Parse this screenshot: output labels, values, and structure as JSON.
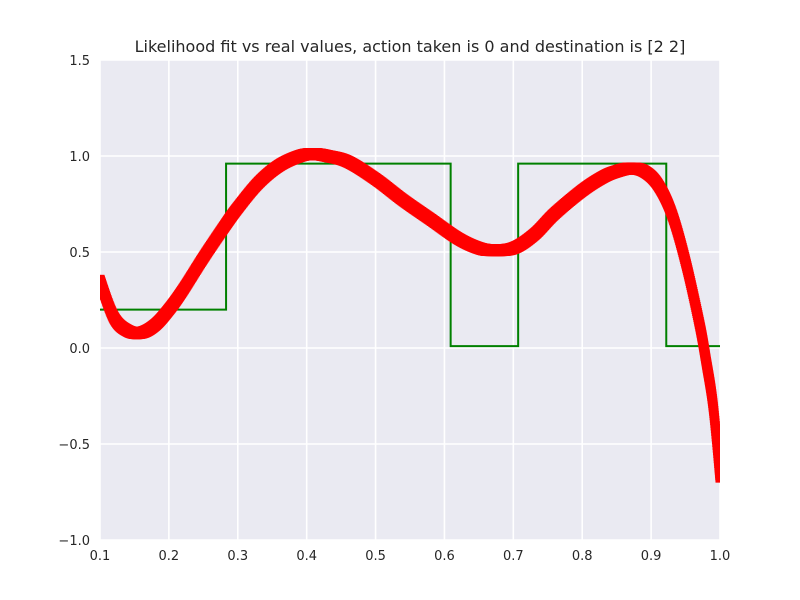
{
  "chart_data": {
    "type": "line",
    "title": "Likelihood fit vs real values, action taken is 0 and destination is [2 2]",
    "xlabel": "",
    "ylabel": "",
    "xlim": [
      0.1,
      1.0
    ],
    "ylim": [
      -1.0,
      1.5
    ],
    "x_ticks": [
      0.1,
      0.2,
      0.3,
      0.4,
      0.5,
      0.6,
      0.7,
      0.8,
      0.9,
      1.0
    ],
    "x_tick_labels": [
      "0.1",
      "0.2",
      "0.3",
      "0.4",
      "0.5",
      "0.6",
      "0.7",
      "0.8",
      "0.9",
      "1.0"
    ],
    "y_ticks": [
      -1.0,
      -0.5,
      0.0,
      0.5,
      1.0,
      1.5
    ],
    "y_tick_labels": [
      "−1.0",
      "−0.5",
      "0.0",
      "0.5",
      "1.0",
      "1.5"
    ],
    "grid": true,
    "background": "#eaeaf2",
    "series": [
      {
        "style": "step",
        "color": "#008000",
        "x": [
          0.1,
          0.283,
          0.283,
          0.609,
          0.609,
          0.707,
          0.707,
          0.922,
          0.922,
          1.0
        ],
        "y": [
          0.2,
          0.2,
          0.96,
          0.96,
          0.01,
          0.01,
          0.96,
          0.96,
          0.01,
          0.01
        ]
      },
      {
        "style": "thick-markers",
        "color": "#ff0000",
        "x": [
          0.1,
          0.12,
          0.14,
          0.16,
          0.18,
          0.2,
          0.22,
          0.25,
          0.28,
          0.3,
          0.33,
          0.36,
          0.39,
          0.41,
          0.43,
          0.46,
          0.5,
          0.54,
          0.58,
          0.62,
          0.65,
          0.67,
          0.7,
          0.73,
          0.76,
          0.8,
          0.83,
          0.85,
          0.87,
          0.89,
          0.91,
          0.93,
          0.95,
          0.97,
          0.98,
          0.99,
          1.0
        ],
        "y": [
          0.35,
          0.16,
          0.09,
          0.08,
          0.12,
          0.2,
          0.3,
          0.47,
          0.63,
          0.73,
          0.86,
          0.95,
          1.0,
          1.01,
          1.0,
          0.97,
          0.88,
          0.77,
          0.67,
          0.57,
          0.52,
          0.51,
          0.52,
          0.59,
          0.7,
          0.82,
          0.89,
          0.92,
          0.935,
          0.92,
          0.85,
          0.7,
          0.45,
          0.13,
          -0.07,
          -0.3,
          -0.67
        ]
      }
    ]
  }
}
